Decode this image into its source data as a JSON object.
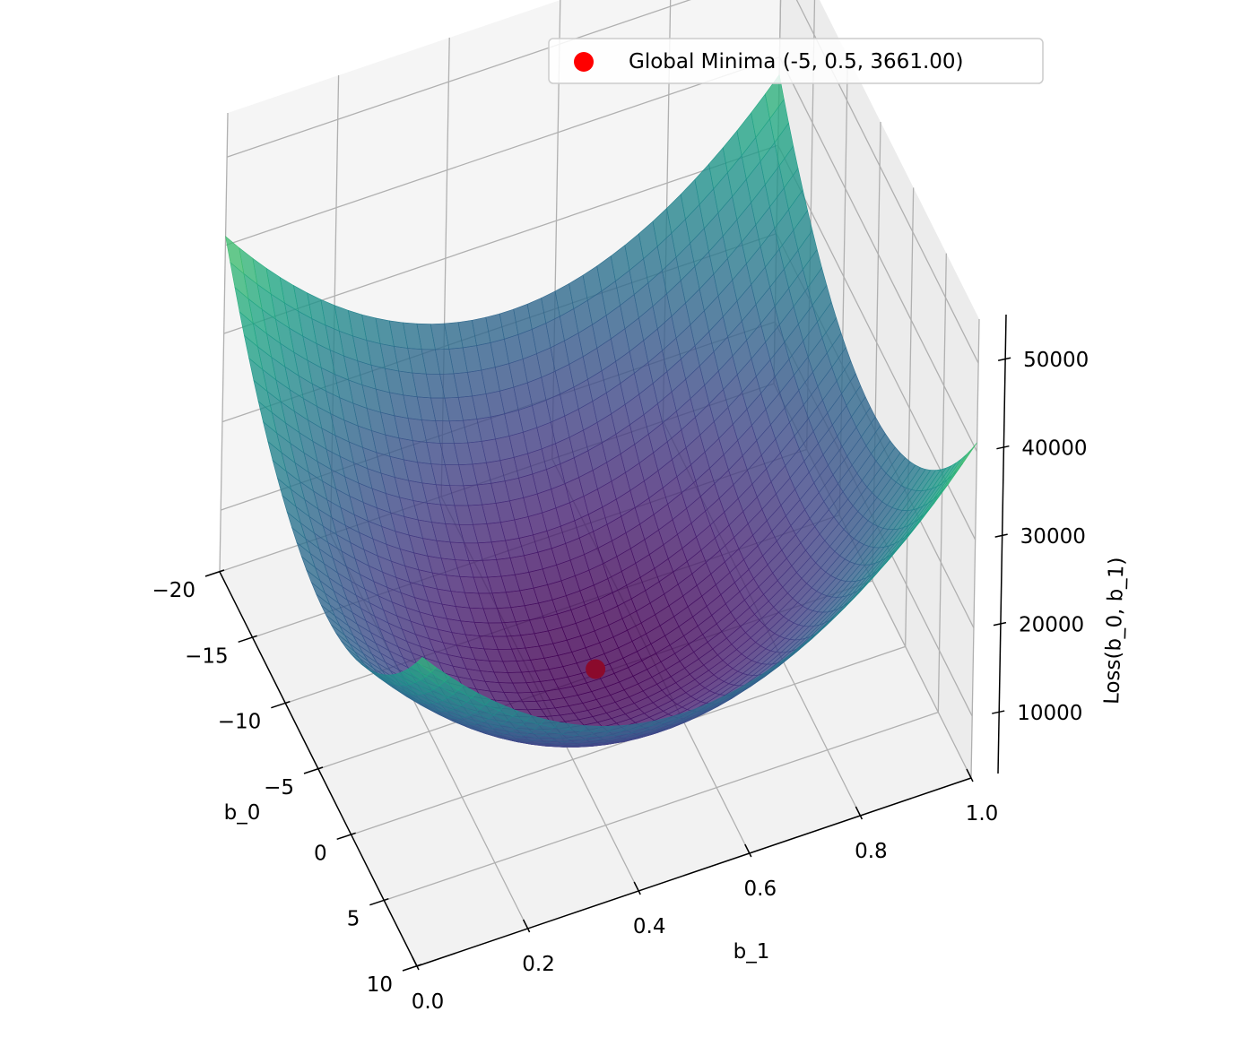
{
  "chart_data": {
    "type": "surface3d",
    "function": "Loss(b_0, b_1) = sum of squared errors (quadratic bowl)",
    "xlabel": "b_0",
    "ylabel": "b_1",
    "zlabel": "Loss(b_0, b_1)",
    "x_range": [
      -20,
      10
    ],
    "y_range": [
      0.0,
      1.0
    ],
    "z_range": [
      3000,
      55000
    ],
    "x_ticks": [
      "−20",
      "−15",
      "−10",
      "−5",
      "0",
      "5",
      "10"
    ],
    "y_ticks": [
      "0.0",
      "0.2",
      "0.4",
      "0.6",
      "0.8",
      "1.0"
    ],
    "z_ticks": [
      "10000",
      "20000",
      "30000",
      "40000",
      "50000"
    ],
    "corner_values": {
      "b0_-20_b1_0": 50000,
      "b0_10_b1_0": 30000,
      "b0_-20_b1_1": 52000,
      "b0_10_b1_1": 26000
    },
    "minimum": {
      "b_0": -5,
      "b_1": 0.5,
      "loss": 3661.0
    },
    "colormap": "viridis",
    "surface_alpha": 0.8,
    "grid": true,
    "legend": {
      "placement": "top-right",
      "entries": [
        {
          "label": "Global Minima (-5, 0.5, 3661.00)",
          "marker": "circle",
          "color": "#ff0000"
        }
      ]
    }
  }
}
